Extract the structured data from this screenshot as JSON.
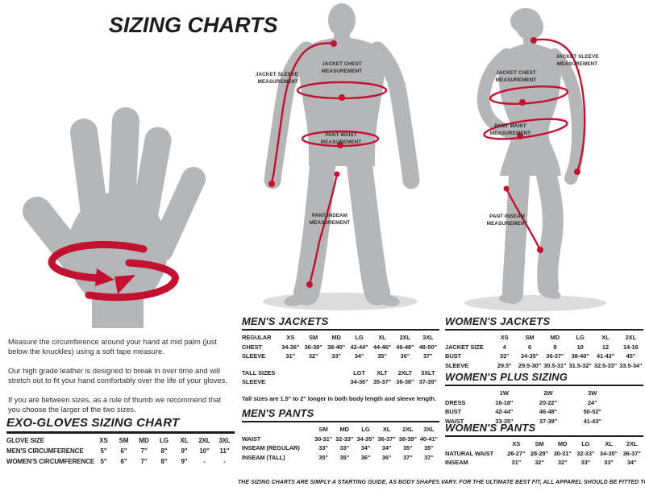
{
  "title": "SIZING CHARTS",
  "colors": {
    "accent_red": "#C3122F",
    "body_gray": "#B5B6B8",
    "shadow_gray": "#DCDCDC",
    "text_black": "#1D1D1F"
  },
  "left_panel": {
    "paragraphs": [
      "Measure the circumference around your hand at mid palm (just below the knuckles) using a soft tape measure.",
      "Our high grade leather is designed to break in over time and will stretch out to fit your hand comfortably over the life of your gloves.",
      "If you are between sizes, as a rule of thumb we recommend that you choose the larger of the two sizes."
    ]
  },
  "figure_labels": {
    "jacket_sleeve": "JACKET SLEEVE MEASUREMENT",
    "jacket_chest": "JACKET CHEST MEASUREMENT",
    "pant_waist": "PANT WAIST MEASUREMENT",
    "pant_inseam": "PANT INSEAM MEASUREMENT"
  },
  "sections": {
    "gloves": {
      "heading": "EXO-GLOVES SIZING CHART",
      "table": {
        "rows": [
          {
            "label": "GLOVE SIZE",
            "values": [
              "XS",
              "SM",
              "MD",
              "LG",
              "XL",
              "2XL",
              "3XL"
            ]
          },
          {
            "label": "MEN'S CIRCUMFERENCE",
            "values": [
              "5\"",
              "6\"",
              "7\"",
              "8\"",
              "9\"",
              "10\"",
              "11\""
            ]
          },
          {
            "label": "WOMEN'S CIRCUMFERENCE",
            "values": [
              "5\"",
              "6\"",
              "7\"",
              "8\"",
              "9\"",
              "-",
              "-"
            ]
          }
        ]
      }
    },
    "mens_jackets": {
      "heading": "MEN'S JACKETS",
      "regular": {
        "rows": [
          {
            "label": "REGULAR",
            "values": [
              "XS",
              "SM",
              "MD",
              "LG",
              "XL",
              "2XL",
              "3XL"
            ]
          },
          {
            "label": "CHEST",
            "values": [
              "34-36\"",
              "36-38\"",
              "38-40\"",
              "42-44\"",
              "44-46\"",
              "46-48\"",
              "48-50\""
            ]
          },
          {
            "label": "SLEEVE",
            "values": [
              "31\"",
              "32\"",
              "33\"",
              "34\"",
              "35\"",
              "36\"",
              "37\""
            ]
          }
        ]
      },
      "tall": {
        "rows": [
          {
            "label": "TALL SIZES",
            "values": [
              "",
              "",
              "",
              "LGT",
              "XLT",
              "2XLT",
              "3XLT"
            ]
          },
          {
            "label": "SLEEVE",
            "values": [
              "",
              "",
              "",
              "34-36\"",
              "35-37\"",
              "36-38\"",
              "37-39\""
            ]
          }
        ]
      },
      "note": "Tall sizes are 1.5\" to 2\" longer in both body length and sleeve length."
    },
    "mens_pants": {
      "heading": "MEN'S PANTS",
      "table": {
        "rows": [
          {
            "label": "",
            "values": [
              "SM",
              "MD",
              "LG",
              "XL",
              "2XL",
              "3XL"
            ]
          },
          {
            "label": "WAIST",
            "values": [
              "30-31\"",
              "32-33\"",
              "34-35\"",
              "36-37\"",
              "38-39\"",
              "40-41\""
            ]
          },
          {
            "label": "INSEAM (REGULAR)",
            "values": [
              "33\"",
              "33\"",
              "34\"",
              "34\"",
              "35\"",
              "35\""
            ]
          },
          {
            "label": "INSEAM (TALL)",
            "values": [
              "35\"",
              "35\"",
              "36\"",
              "36\"",
              "37\"",
              "37\""
            ]
          }
        ]
      }
    },
    "womens_jackets": {
      "heading": "WOMEN'S JACKETS",
      "table": {
        "rows": [
          {
            "label": "",
            "values": [
              "XS",
              "SM",
              "MD",
              "LG",
              "XL",
              "2XL"
            ]
          },
          {
            "label": "JACKET SIZE",
            "values": [
              "4",
              "6",
              "8",
              "10",
              "12",
              "14-16"
            ]
          },
          {
            "label": "BUST",
            "values": [
              "33\"",
              "34-35\"",
              "36-37\"",
              "38-40\"",
              "41-43\"",
              "45\""
            ]
          },
          {
            "label": "SLEEVE",
            "values": [
              "29.5\"",
              "29.5-30\"",
              "30.5-31\"",
              "31.5-32\"",
              "32.5-33\"",
              "33.5-34\""
            ]
          }
        ]
      }
    },
    "womens_plus": {
      "heading": "WOMEN'S PLUS SIZING",
      "table": {
        "rows": [
          {
            "label": "",
            "values": [
              "1W",
              "2W",
              "3W"
            ]
          },
          {
            "label": "DRESS",
            "values": [
              "16-18\"",
              "20-22\"",
              "24\""
            ]
          },
          {
            "label": "BUST",
            "values": [
              "42-44\"",
              "46-48\"",
              "50-52\""
            ]
          },
          {
            "label": "WAIST",
            "values": [
              "33-35\"",
              "37-39\"",
              "41-43\""
            ]
          }
        ]
      }
    },
    "womens_pants": {
      "heading": "WOMEN'S PANTS",
      "table": {
        "rows": [
          {
            "label": "",
            "values": [
              "XS",
              "SM",
              "MD",
              "LG",
              "XL",
              "2XL"
            ]
          },
          {
            "label": "NATURAL WAIST",
            "values": [
              "26-27\"",
              "28-29\"",
              "30-31\"",
              "32-33\"",
              "34-35\"",
              "36-37\""
            ]
          },
          {
            "label": "INSEAM",
            "values": [
              "31\"",
              "32\"",
              "32\"",
              "33\"",
              "33\"",
              "34\""
            ]
          }
        ]
      }
    }
  },
  "disclaimer": "THE SIZING CHARTS ARE SIMPLY A STARTING GUIDE, AS BODY SHAPES VARY. FOR THE ULTIMATE BEST FIT, ALL APPAREL SHOULD BE FITTED TO YOU AT AN AUTHORIZED DEALER."
}
